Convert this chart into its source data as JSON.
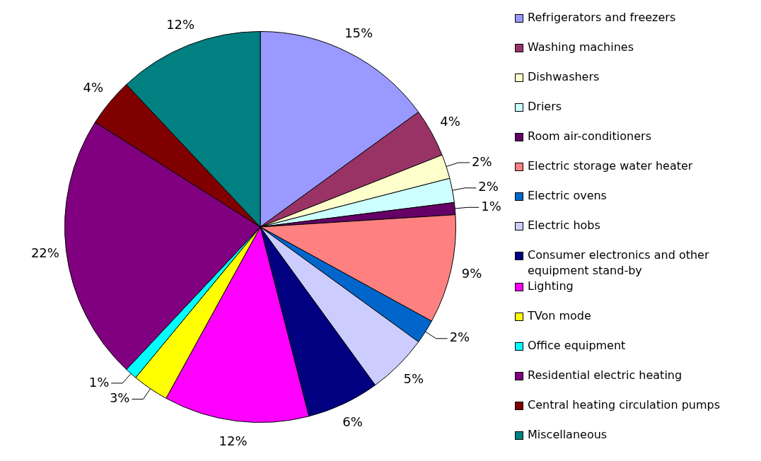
{
  "chart_data": {
    "type": "pie",
    "categories": [
      "Refrigerators and freezers",
      "Washing machines",
      "Dishwashers",
      "Driers",
      "Room air-conditioners",
      "Electric storage water heater",
      "Electric ovens",
      "Electric hobs",
      "Consumer electronics and other equipment stand-by",
      "Lighting",
      "TVon mode",
      "Office equipment",
      "Residential electric heating",
      "Central heating circulation  pumps",
      "Miscellaneous"
    ],
    "values": [
      15,
      4,
      2,
      2,
      1,
      9,
      2,
      5,
      6,
      12,
      3,
      1,
      22,
      4,
      12
    ],
    "colors": [
      "#9999ff",
      "#993366",
      "#ffffcc",
      "#ccffff",
      "#660066",
      "#ff8080",
      "#0066cc",
      "#ccccff",
      "#000080",
      "#ff00ff",
      "#ffff00",
      "#00ffff",
      "#800080",
      "#800000",
      "#008080"
    ],
    "value_labels": [
      "15%",
      "4%",
      "2%",
      "2%",
      "1%",
      "9%",
      "2%",
      "5%",
      "6%",
      "12%",
      "3%",
      "1%",
      "22%",
      "4%",
      "12%"
    ],
    "legend": "right"
  }
}
